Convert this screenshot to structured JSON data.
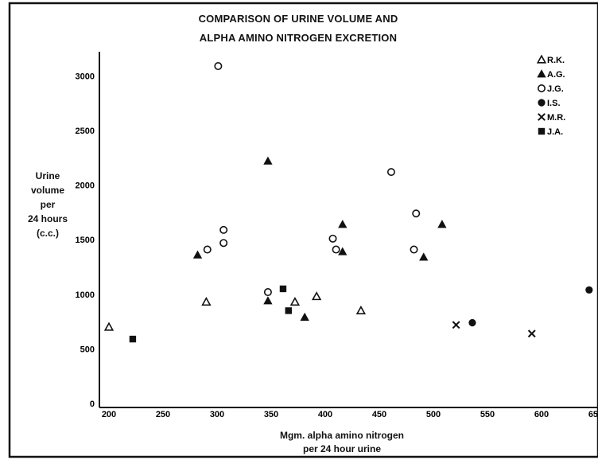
{
  "chart_data": {
    "type": "scatter",
    "title": [
      "COMPARISON OF URINE VOLUME AND",
      "ALPHA AMINO NITROGEN EXCRETION"
    ],
    "ylabel": [
      "Urine",
      "volume",
      "per",
      "24 hours",
      "(c.c.)"
    ],
    "xlabel": [
      "Mgm. alpha amino nitrogen",
      "per 24 hour urine"
    ],
    "xlim": [
      200,
      660
    ],
    "ylim": [
      0,
      3200
    ],
    "x_ticks": [
      "200",
      "250",
      "300",
      "350",
      "400",
      "450",
      "500",
      "550",
      "600",
      "650"
    ],
    "y_ticks": [
      "0",
      "500",
      "1000",
      "1500",
      "2000",
      "2500",
      "3000"
    ],
    "grid": false,
    "legend_position": "top-right",
    "series": [
      {
        "name": "R.K.",
        "marker": "triangle-open",
        "points": [
          [
            200,
            700
          ],
          [
            290,
            930
          ],
          [
            372,
            930
          ],
          [
            392,
            980
          ],
          [
            433,
            850
          ]
        ]
      },
      {
        "name": "A.G.",
        "marker": "triangle-filled",
        "points": [
          [
            282,
            1360
          ],
          [
            347,
            2220
          ],
          [
            347,
            940
          ],
          [
            381,
            790
          ],
          [
            416,
            1640
          ],
          [
            416,
            1390
          ],
          [
            491,
            1340
          ],
          [
            508,
            1640
          ]
        ]
      },
      {
        "name": "J.G.",
        "marker": "circle-open",
        "points": [
          [
            291,
            1410
          ],
          [
            301,
            3090
          ],
          [
            306,
            1590
          ],
          [
            306,
            1470
          ],
          [
            347,
            1020
          ],
          [
            407,
            1510
          ],
          [
            410,
            1410
          ],
          [
            461,
            2120
          ],
          [
            482,
            1410
          ],
          [
            484,
            1740
          ]
        ]
      },
      {
        "name": "I.S.",
        "marker": "circle-filled",
        "points": [
          [
            536,
            740
          ],
          [
            644,
            1040
          ]
        ]
      },
      {
        "name": "M.R.",
        "marker": "cross",
        "points": [
          [
            521,
            720
          ],
          [
            591,
            640
          ]
        ]
      },
      {
        "name": "J.A.",
        "marker": "square-filled",
        "points": [
          [
            222,
            590
          ],
          [
            361,
            1050
          ],
          [
            366,
            850
          ]
        ]
      }
    ]
  }
}
